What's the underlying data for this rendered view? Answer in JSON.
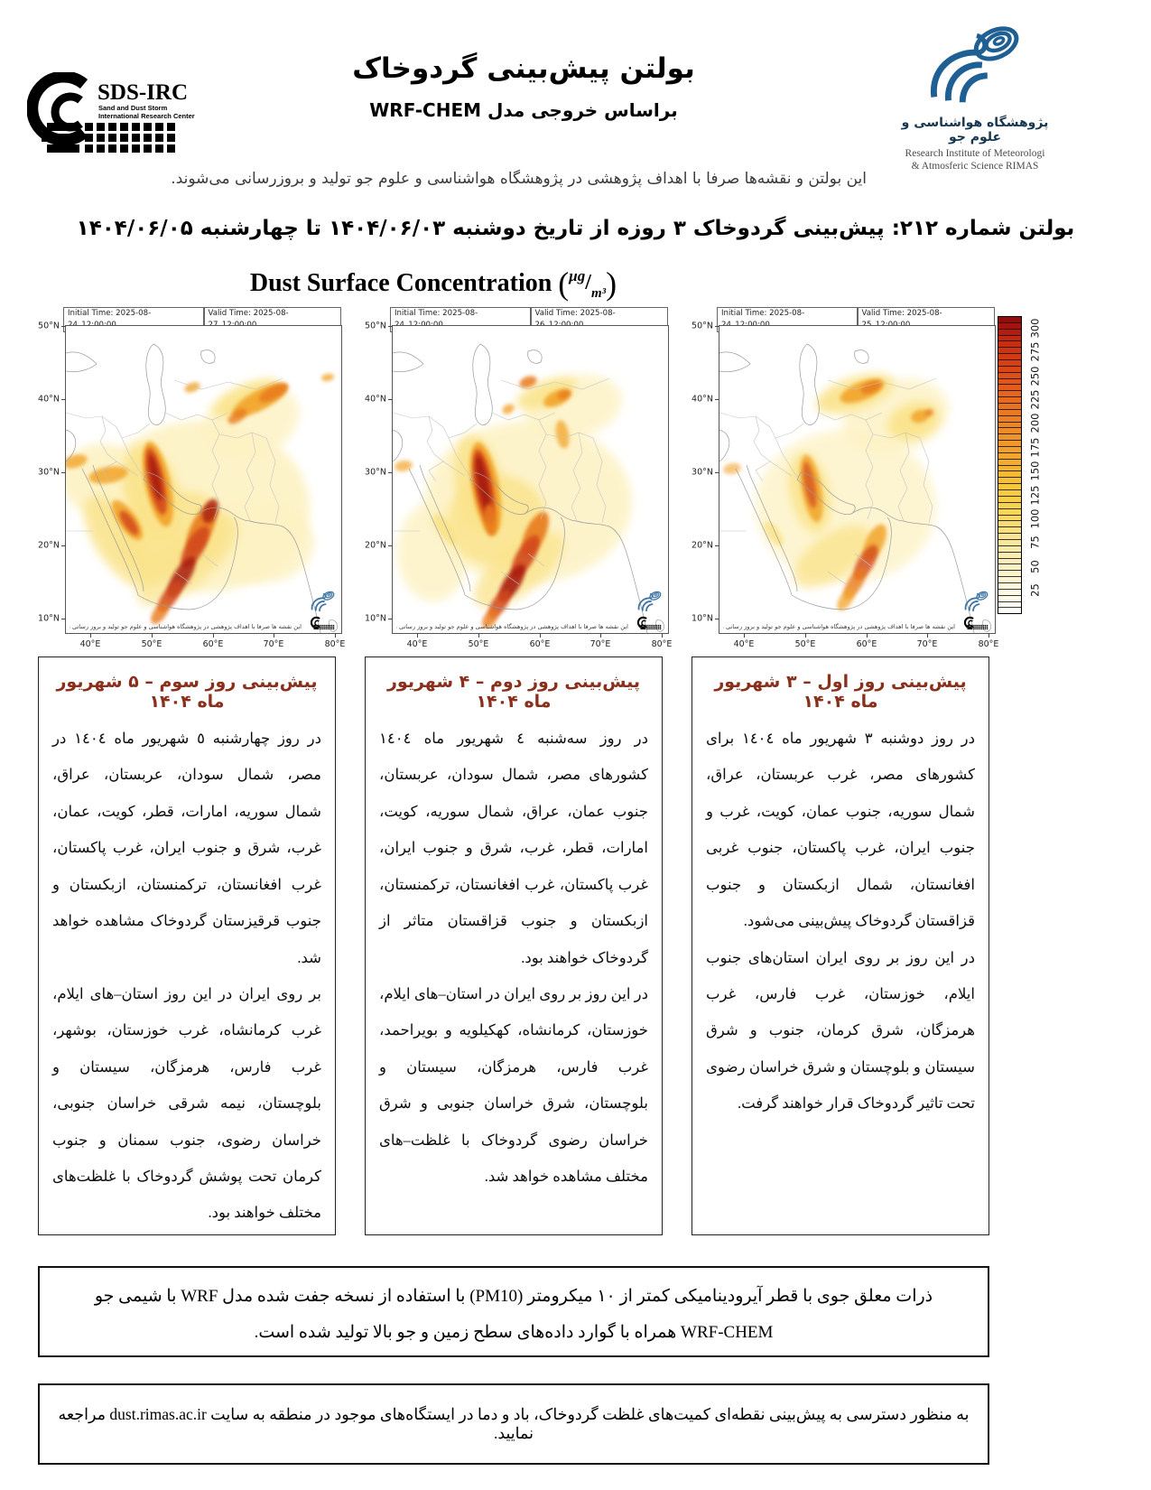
{
  "colors": {
    "accent": "#8a2f1b",
    "logo_blue": "#1e5f94",
    "map_line": "#9a9a9a",
    "border_line": "#c4c4c4"
  },
  "header": {
    "sds_logo": {
      "acronym": "SDS-IRC",
      "line1": "Sand and Dust Storm",
      "line2": "International Research Center"
    },
    "title": "بولتن پیش‌بینی گردوخاک",
    "subtitle": "براساس خروجی مدل WRF-CHEM",
    "rimas": {
      "name_fa": "پژوهشگاه هواشناسی و علوم جو",
      "name_en1": "Research Institute of Meteorologi",
      "name_en2": "& Atmosferic Science RIMAS"
    },
    "disclaimer": "این بولتن و نقشه‌ها صرفا با اهداف پژوهشی در پژوهشگاه هواشناسی و علوم جو تولید و بروزرسانی می‌شوند."
  },
  "bulletin_title": "بولتن شماره ۲۱۲: پیش‌بینی گردوخاک ۳ روزه از تاریخ دوشنبه ۱۴۰۴/۰۶/۰۳ تا چهارشنبه ۱۴۰۴/۰۶/۰۵",
  "chart_title": {
    "main": "Dust Surface Concentration",
    "unit_top": "μg",
    "unit_bottom": "m³"
  },
  "map_common": {
    "lat_labels": [
      "50°N",
      "40°N",
      "30°N",
      "20°N",
      "10°N"
    ],
    "lon_labels": [
      "40°E",
      "50°E",
      "60°E",
      "70°E",
      "80°E"
    ],
    "inner_note": "این نقشه ها صرفا با اهداف پژوهشی در پژوهشگاه هواشناسی و علوم جو تولید و بروز رسانی می شوند."
  },
  "dust_palette": {
    "wash": "#fdf2c3",
    "y": "#fae38a",
    "g": "#f6cf4f",
    "o": "#f2a42c",
    "d": "#e87a1e",
    "r": "#d2491a",
    "k": "#a81c10"
  },
  "maps": [
    {
      "initial_time": "Initial Time: 2025-08-24_12:00:00",
      "valid_time": "Valid Time: 2025-08-27_12:00:00",
      "blobs": [
        [
          150,
          200,
          120,
          95,
          0,
          "wash",
          0.9,
          0
        ],
        [
          40,
          170,
          45,
          40,
          0,
          "wash",
          0.9,
          0
        ],
        [
          205,
          105,
          55,
          40,
          -20,
          "wash",
          0.8,
          0
        ],
        [
          215,
          240,
          60,
          45,
          0,
          "wash",
          0.85,
          0
        ],
        [
          120,
          230,
          60,
          45,
          -20,
          "y",
          0.8,
          0
        ],
        [
          95,
          185,
          30,
          55,
          -15,
          "y",
          0.9,
          0
        ],
        [
          200,
          80,
          40,
          14,
          -25,
          "y",
          0.9,
          0
        ],
        [
          60,
          240,
          26,
          60,
          -35,
          "y",
          0.8,
          0
        ],
        [
          135,
          260,
          70,
          28,
          -40,
          "y",
          0.7,
          0
        ],
        [
          102,
          175,
          14,
          48,
          -12,
          "o",
          0.95,
          1
        ],
        [
          100,
          172,
          9,
          38,
          -12,
          "r",
          0.9,
          1
        ],
        [
          99,
          168,
          5,
          26,
          -12,
          "k",
          0.9,
          1
        ],
        [
          68,
          215,
          10,
          26,
          -35,
          "o",
          0.9,
          1
        ],
        [
          70,
          218,
          6,
          16,
          -35,
          "r",
          0.85,
          1
        ],
        [
          47,
          165,
          22,
          9,
          -10,
          "o",
          0.85,
          1
        ],
        [
          10,
          150,
          14,
          7,
          -15,
          "o",
          0.8,
          1
        ],
        [
          215,
          82,
          34,
          11,
          -28,
          "o",
          0.9,
          1
        ],
        [
          230,
          74,
          18,
          7,
          -28,
          "d",
          0.85,
          1
        ],
        [
          190,
          100,
          12,
          6,
          -35,
          "d",
          0.8,
          1
        ],
        [
          140,
          68,
          9,
          5,
          -20,
          "o",
          0.8,
          1
        ],
        [
          290,
          57,
          7,
          4,
          -10,
          "o",
          0.8,
          1
        ],
        [
          150,
          225,
          12,
          30,
          25,
          "d",
          0.9,
          1
        ],
        [
          143,
          245,
          10,
          26,
          30,
          "r",
          0.9,
          1
        ],
        [
          128,
          278,
          9,
          26,
          32,
          "k",
          0.85,
          1
        ],
        [
          115,
          300,
          8,
          20,
          35,
          "r",
          0.85,
          1
        ],
        [
          104,
          318,
          7,
          14,
          35,
          "d",
          0.8,
          1
        ],
        [
          160,
          205,
          8,
          14,
          20,
          "k",
          0.8,
          1
        ]
      ]
    },
    {
      "initial_time": "Initial Time: 2025-08-24_12:00:00",
      "valid_time": "Valid Time: 2025-08-26_12:00:00",
      "blobs": [
        [
          150,
          195,
          115,
          90,
          0,
          "wash",
          0.85,
          0
        ],
        [
          200,
          90,
          55,
          35,
          -15,
          "wash",
          0.8,
          0
        ],
        [
          45,
          250,
          40,
          55,
          0,
          "wash",
          0.8,
          0
        ],
        [
          115,
          215,
          55,
          50,
          -15,
          "y",
          0.8,
          0
        ],
        [
          95,
          175,
          26,
          55,
          -10,
          "y",
          0.85,
          0
        ],
        [
          170,
          75,
          35,
          14,
          -20,
          "y",
          0.85,
          0
        ],
        [
          140,
          270,
          60,
          26,
          -38,
          "y",
          0.75,
          0
        ],
        [
          103,
          180,
          15,
          52,
          -10,
          "o",
          0.95,
          1
        ],
        [
          101,
          178,
          10,
          42,
          -10,
          "r",
          0.95,
          1
        ],
        [
          100,
          175,
          6,
          32,
          -10,
          "k",
          0.95,
          1
        ],
        [
          108,
          215,
          7,
          18,
          -5,
          "d",
          0.85,
          1
        ],
        [
          150,
          62,
          10,
          6,
          -20,
          "d",
          0.85,
          1
        ],
        [
          182,
          80,
          16,
          8,
          -25,
          "o",
          0.9,
          1
        ],
        [
          190,
          76,
          8,
          5,
          -25,
          "d",
          0.8,
          1
        ],
        [
          128,
          92,
          7,
          5,
          -30,
          "o",
          0.8,
          1
        ],
        [
          188,
          120,
          7,
          16,
          -10,
          "o",
          0.75,
          1
        ],
        [
          158,
          230,
          11,
          26,
          25,
          "d",
          0.9,
          1
        ],
        [
          147,
          255,
          10,
          26,
          30,
          "r",
          0.9,
          1
        ],
        [
          132,
          285,
          9,
          24,
          32,
          "k",
          0.9,
          1
        ],
        [
          118,
          308,
          8,
          18,
          34,
          "r",
          0.85,
          1
        ],
        [
          108,
          324,
          7,
          12,
          35,
          "d",
          0.8,
          1
        ],
        [
          12,
          155,
          10,
          6,
          -10,
          "o",
          0.7,
          1
        ],
        [
          58,
          225,
          8,
          20,
          -35,
          "y",
          0.9,
          1
        ]
      ]
    },
    {
      "initial_time": "Initial Time: 2025-08-24_12:00:00",
      "valid_time": "Valid Time: 2025-08-25_12:00:00",
      "blobs": [
        [
          140,
          200,
          100,
          85,
          0,
          "wash",
          0.75,
          0
        ],
        [
          195,
          100,
          60,
          40,
          -15,
          "wash",
          0.8,
          0
        ],
        [
          150,
          75,
          45,
          18,
          -18,
          "y",
          0.9,
          0
        ],
        [
          215,
          105,
          30,
          20,
          -20,
          "y",
          0.9,
          0
        ],
        [
          100,
          185,
          22,
          45,
          -12,
          "y",
          0.85,
          0
        ],
        [
          125,
          255,
          50,
          24,
          -35,
          "y",
          0.75,
          0
        ],
        [
          158,
          72,
          26,
          10,
          -22,
          "o",
          0.9,
          1
        ],
        [
          168,
          68,
          12,
          6,
          -22,
          "d",
          0.85,
          1
        ],
        [
          222,
          100,
          10,
          7,
          -15,
          "o",
          0.85,
          1
        ],
        [
          232,
          96,
          5,
          4,
          -15,
          "d",
          0.8,
          1
        ],
        [
          102,
          180,
          11,
          38,
          -10,
          "o",
          0.85,
          1
        ],
        [
          100,
          176,
          6,
          26,
          -10,
          "r",
          0.7,
          1
        ],
        [
          172,
          240,
          10,
          22,
          25,
          "o",
          0.85,
          1
        ],
        [
          162,
          262,
          9,
          22,
          30,
          "r",
          0.8,
          1
        ],
        [
          150,
          285,
          8,
          20,
          32,
          "d",
          0.8,
          1
        ],
        [
          140,
          303,
          7,
          14,
          34,
          "o",
          0.75,
          1
        ],
        [
          14,
          158,
          10,
          6,
          -10,
          "o",
          0.6,
          1
        ],
        [
          60,
          230,
          7,
          16,
          -35,
          "y",
          0.8,
          1
        ]
      ]
    }
  ],
  "colorbar": {
    "ticks": [
      "25",
      "50",
      "75",
      "100",
      "125",
      "150",
      "175",
      "200",
      "225",
      "250",
      "275",
      "300"
    ],
    "scale_max": 312.5,
    "cells": 48,
    "stops": [
      [
        0,
        "#ffffff"
      ],
      [
        0.08,
        "#fdf8e1"
      ],
      [
        0.17,
        "#faf0bd"
      ],
      [
        0.25,
        "#f8e69a"
      ],
      [
        0.33,
        "#f8d75b"
      ],
      [
        0.42,
        "#f6c93b"
      ],
      [
        0.5,
        "#f3b02f"
      ],
      [
        0.58,
        "#ef962a"
      ],
      [
        0.67,
        "#ea7b23"
      ],
      [
        0.75,
        "#e5601d"
      ],
      [
        0.83,
        "#da4416"
      ],
      [
        0.92,
        "#c42a10"
      ],
      [
        0.97,
        "#a5120e"
      ],
      [
        1,
        "#8c0a0a"
      ]
    ]
  },
  "forecasts": [
    {
      "title": "پیش‌بینی روز اول – ۳ شهریور ماه ۱۴۰۴",
      "p1": "در روز دوشنبه ٣ شهریور ماه ١٤٠٤ برای کشورهای مصر، غرب عربستان، عراق، شمال سوریه، جنوب عمان، کویت، غرب و جنوب ایران، غرب پاکستان، جنوب غربی افغانستان، شمال ازبکستان و جنوب قزاقستان گردوخاک پیش‌بینی می‌شود.",
      "p2": "در این روز بر روی ایران استان‌های جنوب ایلام، خوزستان، غرب فارس، غرب هرمزگان، شرق کرمان، جنوب و شرق سیستان و بلوچستان و شرق خراسان رضوی تحت تاثیر گردوخاک قرار خواهند گرفت."
    },
    {
      "title": "پیش‌بینی روز دوم – ۴ شهریور ماه ۱۴۰۴",
      "p1": "در روز سه‌شنبه ٤ شهریور ماه ١٤٠٤ کشورهای مصر، شمال سودان، عربستان، جنوب عمان، عراق، شمال سوریه، کویت، امارات، قطر، غرب، شرق و جنوب ایران، غرب پاکستان، غرب افغانستان، ترکمنستان، ازبکستان و جنوب قزاقستان متاثر از گردوخاک خواهند بود.",
      "p2": "در این روز بر روی ایران در استان–های ایلام، خوزستان، کرمانشاه، کهکیلویه و بویراحمد، غرب فارس، هرمزگان، سیستان و بلوچستان، شرق خراسان جنوبی و شرق خراسان رضوی گردوخاک با غلظت–های مختلف مشاهده خواهد شد."
    },
    {
      "title": "پیش‌بینی روز سوم – ۵ شهریور ماه ۱۴۰۴",
      "p1": "در روز چهارشنبه ٥ شهریور ماه ١٤٠٤ در مصر، شمال سودان، عربستان، عراق، شمال سوریه، امارات، قطر، کویت، عمان، غرب، شرق و جنوب ایران، غرب پاکستان، غرب افغانستان، ترکمنستان، ازبکستان و جنوب قرقیزستان گردوخاک مشاهده خواهد شد.",
      "p2": "بر روی ایران در این روز استان–های ایلام، غرب کرمانشاه، غرب خوزستان، بوشهر، غرب فارس، هرمزگان، سیستان و بلوچستان، نیمه شرقی خراسان جنوبی، خراسان رضوی، جنوب سمنان و جنوب کرمان تحت پوشش گردوخاک با غلظت‌های مختلف خواهند بود."
    }
  ],
  "model_note": {
    "line1": "ذرات معلق جوی با قطر آیرودینامیکی کمتر از ١٠ میکرومتر (PM10) با استفاده از نسخه جفت شده مدل WRF با شیمی جو",
    "line2": "WRF-CHEM همراه با گوارد داده‌های سطح زمین و جو بالا تولید شده است."
  },
  "site_note": {
    "pre": "به منظور دسترسی به پیش‌بینی نقطه‌ای کمیت‌های غلظت گردوخاک، باد و دما در ایستگاه‌های موجود در منطقه به سایت ",
    "link": "dust.rimas.ac.ir",
    "post": " مراجعه نمایید."
  }
}
